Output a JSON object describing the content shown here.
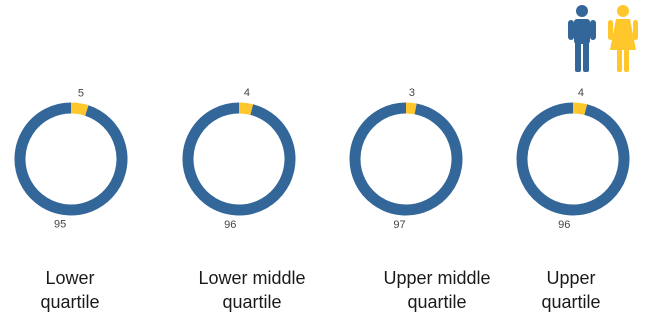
{
  "colors": {
    "male": "#336699",
    "female": "#ffc72c",
    "text": "#444444"
  },
  "legend": {
    "icons": [
      "male-person-icon",
      "female-person-icon"
    ]
  },
  "chart_data": {
    "type": "pie",
    "charts": [
      {
        "quartile_line1": "Lower",
        "quartile_line2": "quartile",
        "values": [
          95,
          5
        ]
      },
      {
        "quartile_line1": "Lower middle",
        "quartile_line2": "quartile",
        "values": [
          96,
          4
        ]
      },
      {
        "quartile_line1": "Upper middle",
        "quartile_line2": "quartile",
        "values": [
          97,
          3
        ]
      },
      {
        "quartile_line1": "Upper",
        "quartile_line2": "quartile",
        "values": [
          96,
          4
        ]
      }
    ]
  }
}
